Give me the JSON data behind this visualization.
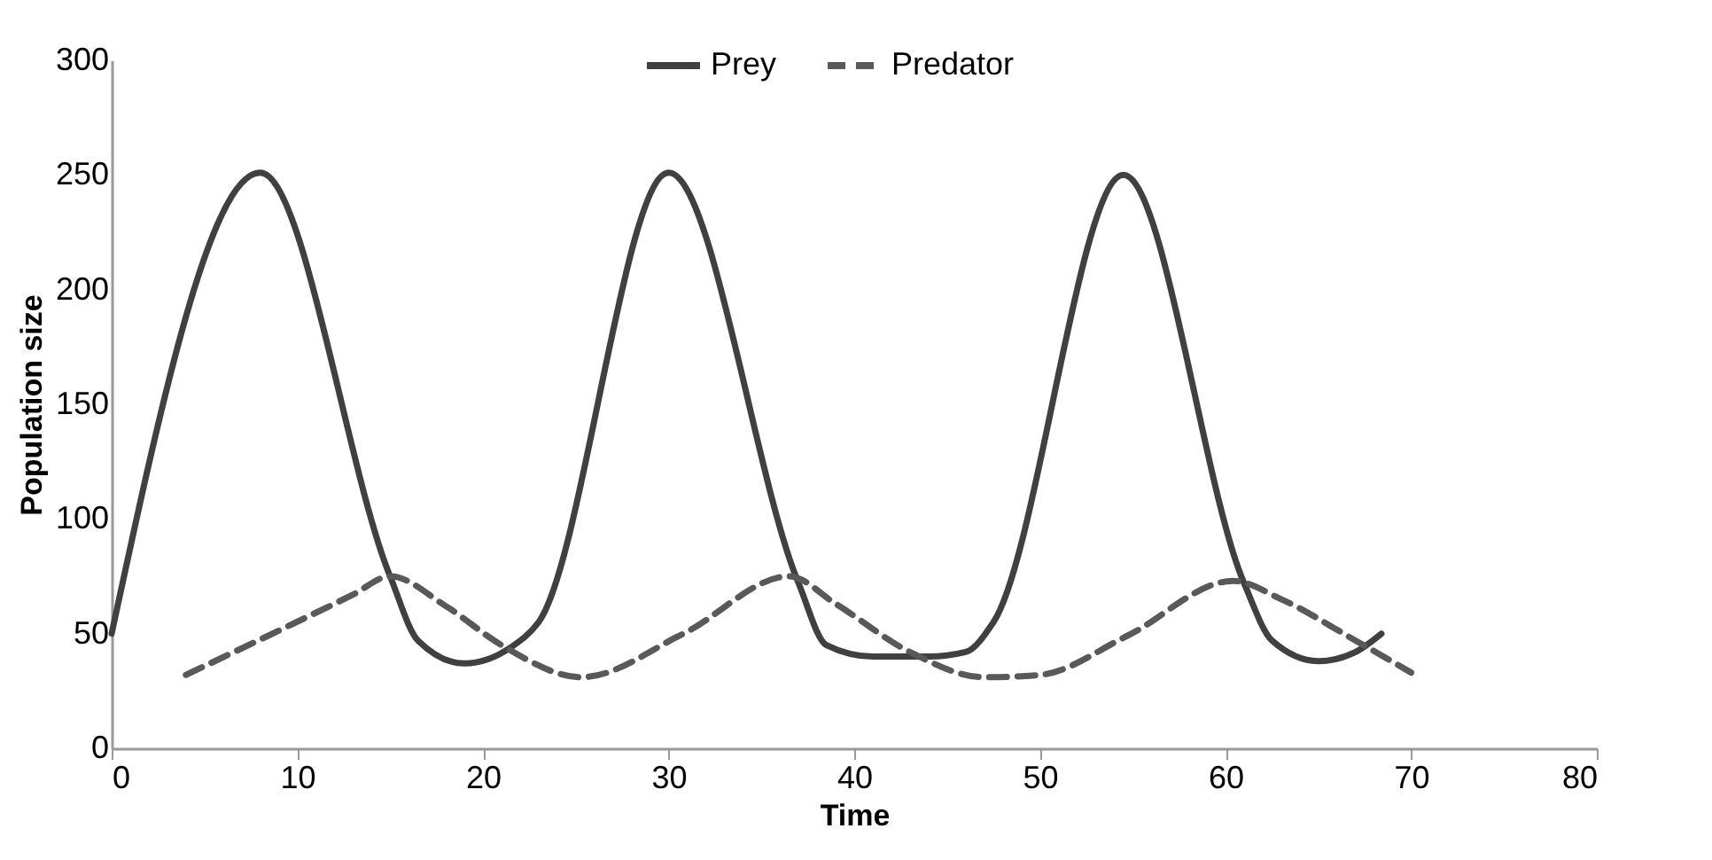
{
  "chart_data": {
    "type": "line",
    "xlabel": "Time",
    "ylabel": "Population size",
    "xlim": [
      0,
      80
    ],
    "xticks": [
      0,
      10,
      20,
      30,
      40,
      50,
      60,
      70,
      80
    ],
    "ylim": [
      0,
      300
    ],
    "yticks": [
      0,
      50,
      100,
      150,
      200,
      250,
      300
    ],
    "grid": false,
    "legend": "top",
    "marker": "none",
    "series": [
      {
        "name": "Prey",
        "color": "#404040",
        "line_style": "solid",
        "x": [
          0,
          8,
          15,
          16.5,
          19,
          21.5,
          23,
          30,
          37,
          38.5,
          41,
          44,
          46,
          47.5,
          54.5,
          61,
          62.5,
          65,
          67,
          68.4
        ],
        "values": [
          50,
          251,
          75,
          47,
          37,
          44,
          55,
          251,
          72,
          45,
          40,
          40,
          42,
          55,
          250,
          72,
          47,
          38,
          42,
          50
        ]
      },
      {
        "name": "Predator",
        "color": "#595959",
        "line_style": "dashed",
        "x": [
          4,
          13,
          15,
          18,
          21,
          25.3,
          30.8,
          36.5,
          39,
          43,
          47,
          50,
          54.7,
          60.4,
          63,
          67,
          70
        ],
        "values": [
          32,
          67,
          75,
          62,
          45,
          31,
          50,
          75,
          63,
          42,
          31,
          32,
          49,
          73,
          65,
          47,
          33
        ]
      }
    ]
  }
}
